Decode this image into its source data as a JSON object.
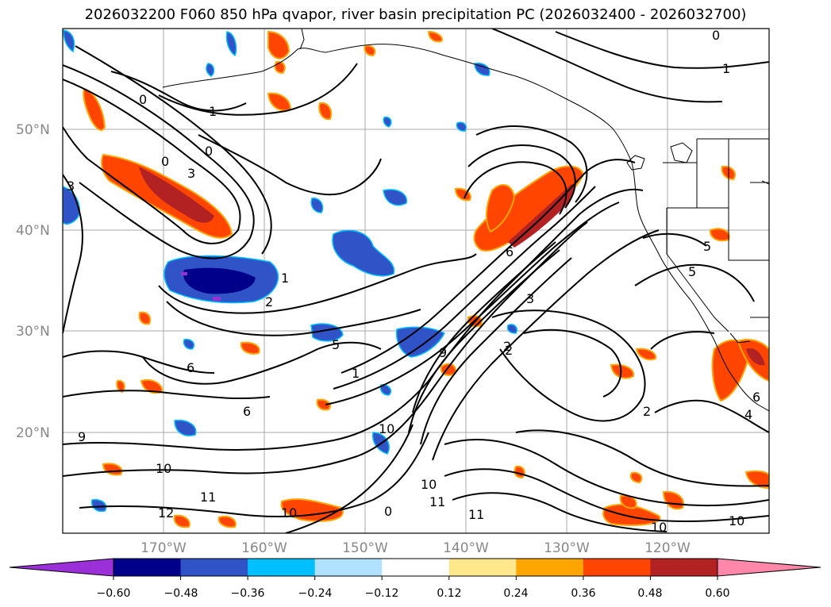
{
  "title": "2026032200 F060 850 hPa qvapor, river basin precipitation PC (2026032400 - 2026032700)",
  "lat_labels": [
    "50°N",
    "40°N",
    "30°N",
    "20°N"
  ],
  "lon_labels": [
    "170°W",
    "160°W",
    "150°W",
    "140°W",
    "130°W",
    "120°W"
  ],
  "contour_labels": [
    "0",
    "1",
    "0",
    "0",
    "1",
    "3",
    "3",
    "2",
    "1",
    "6",
    "5",
    "2",
    "6",
    "9",
    "10",
    "11",
    "12",
    "10",
    "10",
    "10",
    "11",
    "3",
    "2",
    "2",
    "4",
    "5",
    "5",
    "6",
    "6",
    "9",
    "0",
    "1",
    "0",
    "11",
    "10",
    "10"
  ],
  "colorbar": {
    "ticks": [
      "−0.60",
      "−0.48",
      "−0.36",
      "−0.24",
      "−0.12",
      "0.12",
      "0.24",
      "0.36",
      "0.48",
      "0.60"
    ],
    "colors": [
      "#9b30d9",
      "#00008b",
      "#3153c8",
      "#00bfff",
      "#b0e2ff",
      "#ffffff",
      "#ffe88c",
      "#ffa500",
      "#ff4500",
      "#b22222",
      "#ff88aa"
    ]
  },
  "colors": {
    "neg_strong": "#00008b",
    "neg_mid": "#3153c8",
    "neg_light": "#00bfff",
    "pos_light": "#ffa500",
    "pos_mid": "#ff4500",
    "pos_strong": "#b22222",
    "grid": "#aaaaaa"
  }
}
